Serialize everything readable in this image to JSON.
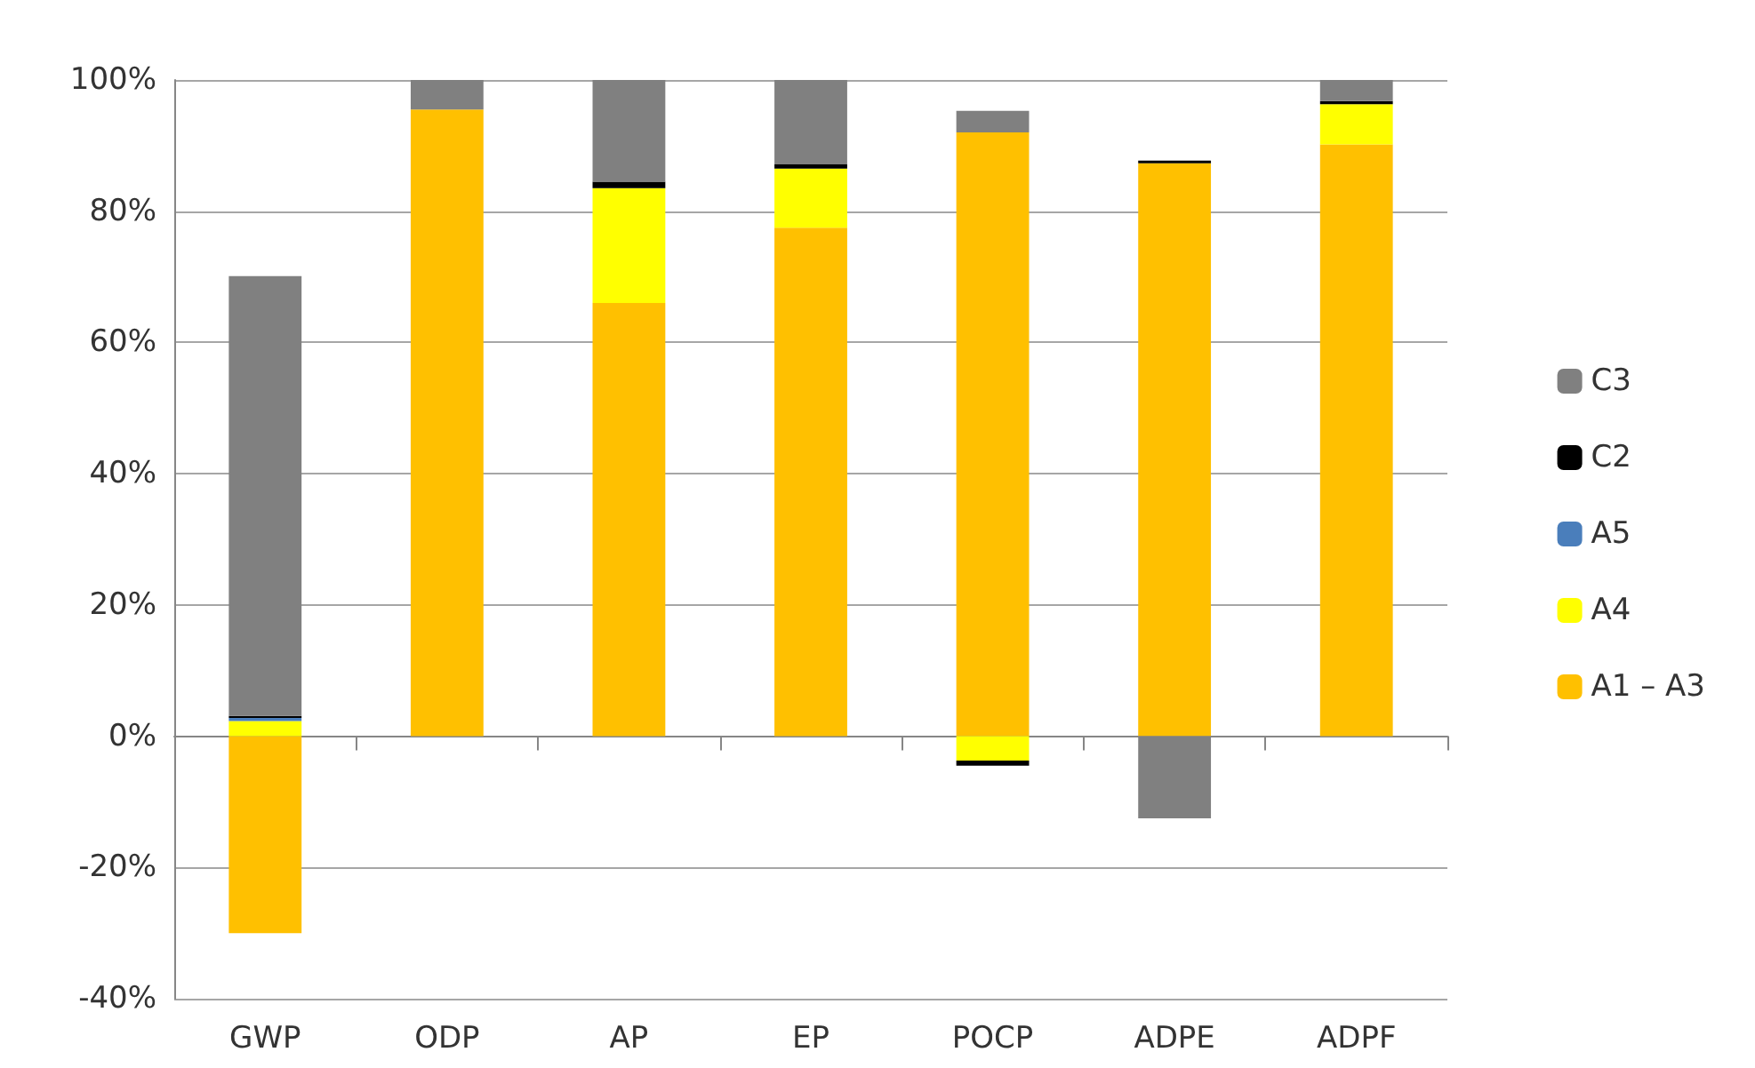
{
  "chart_data": {
    "type": "bar",
    "stacked": true,
    "categories": [
      "GWP",
      "ODP",
      "AP",
      "EP",
      "POCP",
      "ADPE",
      "ADPF"
    ],
    "series": [
      {
        "name": "A1 – A3",
        "color": "#ffc000",
        "values": [
          -30,
          95.5,
          66,
          77.5,
          92,
          87.3,
          90.2
        ]
      },
      {
        "name": "A4",
        "color": "#ffff00",
        "values": [
          2.3,
          null,
          17.5,
          9,
          -3.7,
          null,
          6.1
        ]
      },
      {
        "name": "A5",
        "color": "#4a7ebb",
        "values": [
          0.5,
          null,
          null,
          null,
          null,
          null,
          null
        ]
      },
      {
        "name": "C2",
        "color": "#000000",
        "values": [
          0.3,
          null,
          1,
          0.7,
          -0.8,
          0.4,
          0.5
        ]
      },
      {
        "name": "C3",
        "color": "#808080",
        "values": [
          67,
          4.5,
          15.5,
          12.8,
          3.3,
          -12.5,
          3.2
        ]
      }
    ],
    "ylim": [
      -40,
      100
    ],
    "yticks": [
      {
        "value": -40,
        "label": "-40%"
      },
      {
        "value": -20,
        "label": "-20%"
      },
      {
        "value": 0,
        "label": "0%"
      },
      {
        "value": 20,
        "label": "20%"
      },
      {
        "value": 40,
        "label": "40%"
      },
      {
        "value": 60,
        "label": "60%"
      },
      {
        "value": 80,
        "label": "80%"
      },
      {
        "value": 100,
        "label": "100%"
      }
    ],
    "grid": "y",
    "legend": "right"
  }
}
